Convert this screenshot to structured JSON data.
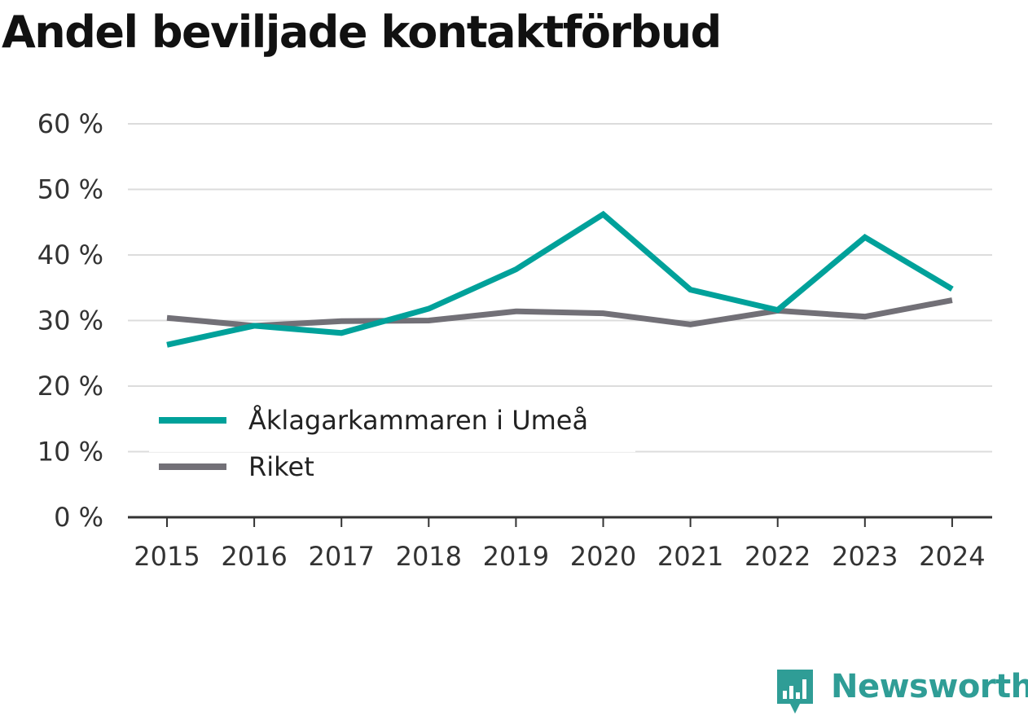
{
  "chart_data": {
    "type": "line",
    "title": "Andel beviljade kontaktförbud",
    "xlabel": "",
    "ylabel": "",
    "categories": [
      "2015",
      "2016",
      "2017",
      "2018",
      "2019",
      "2020",
      "2021",
      "2022",
      "2023",
      "2024"
    ],
    "y_ticks": [
      0,
      10,
      20,
      30,
      40,
      50,
      60
    ],
    "y_tick_labels": [
      "0 %",
      "10 %",
      "20 %",
      "30 %",
      "40 %",
      "50 %",
      "60 %"
    ],
    "ylim": [
      0,
      60
    ],
    "grid": true,
    "legend_position": "bottom-left",
    "series": [
      {
        "name": "Åklagarkammaren i Umeå",
        "color": "#00a19a",
        "values": [
          26.3,
          29.2,
          28.1,
          31.8,
          37.8,
          46.2,
          34.7,
          31.6,
          42.7,
          34.8
        ]
      },
      {
        "name": "Riket",
        "color": "#727077",
        "values": [
          30.4,
          29.2,
          29.9,
          30.0,
          31.4,
          31.1,
          29.4,
          31.5,
          30.6,
          33.1
        ]
      }
    ]
  },
  "brand": {
    "name": "Newsworthy",
    "color": "#2f9d96",
    "icon": "newsworthy-logo-icon"
  }
}
